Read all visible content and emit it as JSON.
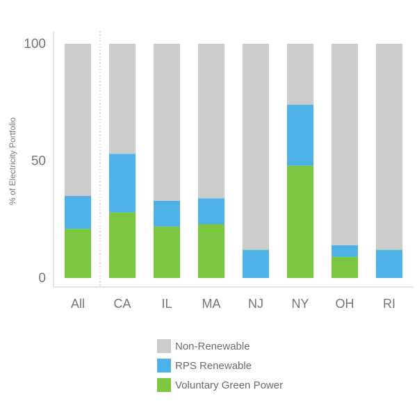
{
  "chart_data": {
    "type": "bar",
    "stacked": true,
    "categories": [
      "All",
      "CA",
      "IL",
      "MA",
      "NJ",
      "NY",
      "OH",
      "RI"
    ],
    "series": [
      {
        "name": "Voluntary Green Power",
        "color": "#7dc63f",
        "values": [
          21,
          28,
          22,
          23,
          0,
          48,
          9,
          0
        ]
      },
      {
        "name": "RPS Renewable",
        "color": "#4db0e6",
        "values": [
          14,
          25,
          11,
          11,
          12,
          26,
          5,
          12
        ]
      },
      {
        "name": "Non-Renewable",
        "color": "#cccccc",
        "values": [
          65,
          47,
          67,
          66,
          88,
          26,
          86,
          88
        ]
      }
    ],
    "ylabel": "% of Electricity Portfolio",
    "yticks": [
      "0",
      "50",
      "100"
    ],
    "ylim": [
      0,
      100
    ],
    "grid": false,
    "legend_position": "bottom",
    "separator_after_category": "All",
    "legend": [
      {
        "label": "Non-Renewable",
        "color": "#cccccc"
      },
      {
        "label": "RPS Renewable",
        "color": "#4db0e6"
      },
      {
        "label": "Voluntary Green Power",
        "color": "#7dc63f"
      }
    ]
  }
}
